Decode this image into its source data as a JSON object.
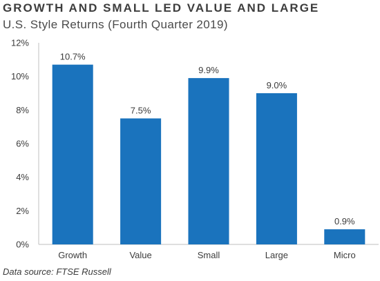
{
  "chart_data": {
    "type": "bar",
    "title": "GROWTH AND SMALL LED VALUE AND LARGE",
    "subtitle": "U.S. Style Returns (Fourth Quarter 2019)",
    "source": "Data source: FTSE Russell",
    "categories": [
      "Growth",
      "Value",
      "Small",
      "Large",
      "Micro"
    ],
    "values": [
      10.7,
      7.5,
      9.9,
      9.0,
      0.9
    ],
    "data_labels": [
      "10.7%",
      "7.5%",
      "9.9%",
      "9.0%",
      "0.9%"
    ],
    "xlabel": "",
    "ylabel": "",
    "ylim": [
      0,
      12
    ],
    "yticks": [
      0,
      2,
      4,
      6,
      8,
      10,
      12
    ],
    "ytick_labels": [
      "0%",
      "2%",
      "4%",
      "6%",
      "8%",
      "10%",
      "12%"
    ],
    "grid": false,
    "legend": "none",
    "bar_color": "#1a73bd",
    "axis_color": "#bfbfbf"
  }
}
